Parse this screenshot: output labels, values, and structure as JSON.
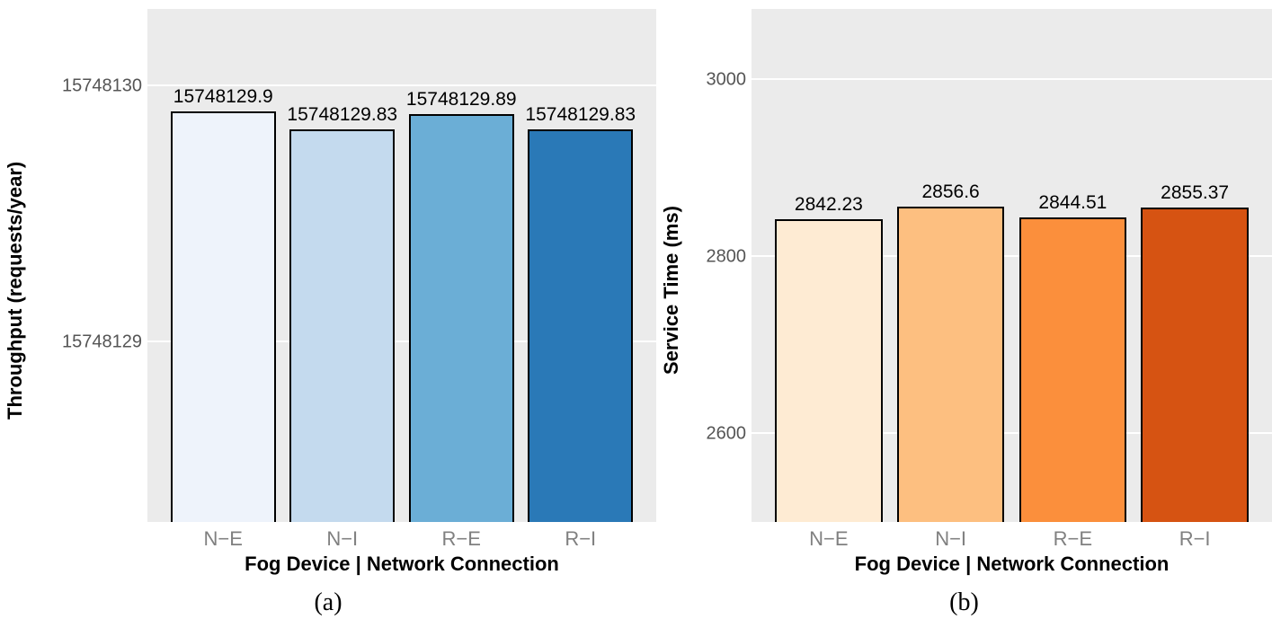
{
  "panel_a": {
    "type": "bar",
    "caption": "(a)",
    "ylabel": "Throughput (requests/year)",
    "xlabel": "Fog Device | Network Connection",
    "background_color": "#ebebeb",
    "grid_color": "#ffffff",
    "bar_border_color": "#000000",
    "bar_border_width": 2,
    "caption_fontsize": 28,
    "label_fontsize": 22,
    "tick_fontsize": 20,
    "value_label_fontsize": 21,
    "ylim": [
      15748128.3,
      15748130.3
    ],
    "yticks": [
      {
        "value": 15748129,
        "label": "15748129"
      },
      {
        "value": 15748130,
        "label": "15748130"
      }
    ],
    "categories": [
      "N−E",
      "N−I",
      "R−E",
      "R−I"
    ],
    "values": [
      15748129.9,
      15748129.83,
      15748129.89,
      15748129.83
    ],
    "value_labels": [
      "15748129.9",
      "15748129.83",
      "15748129.89",
      "15748129.83"
    ],
    "bar_colors": [
      "#eef3fb",
      "#c4daee",
      "#6baed6",
      "#2a79b7"
    ],
    "bar_width": 0.88
  },
  "panel_b": {
    "type": "bar",
    "caption": "(b)",
    "ylabel": "Service Time (ms)",
    "xlabel": "Fog Device | Network Connection",
    "background_color": "#ebebeb",
    "grid_color": "#ffffff",
    "bar_border_color": "#000000",
    "bar_border_width": 2,
    "caption_fontsize": 28,
    "label_fontsize": 22,
    "tick_fontsize": 20,
    "value_label_fontsize": 21,
    "ylim": [
      2500,
      3080
    ],
    "yticks": [
      {
        "value": 2600,
        "label": "2600"
      },
      {
        "value": 2800,
        "label": "2800"
      },
      {
        "value": 3000,
        "label": "3000"
      }
    ],
    "categories": [
      "N−E",
      "N−I",
      "R−E",
      "R−I"
    ],
    "values": [
      2842.23,
      2856.6,
      2844.51,
      2855.37
    ],
    "value_labels": [
      "2842.23",
      "2856.6",
      "2844.51",
      "2855.37"
    ],
    "bar_colors": [
      "#feebd3",
      "#fdbf80",
      "#fb8f3c",
      "#d65312"
    ],
    "bar_width": 0.88
  }
}
